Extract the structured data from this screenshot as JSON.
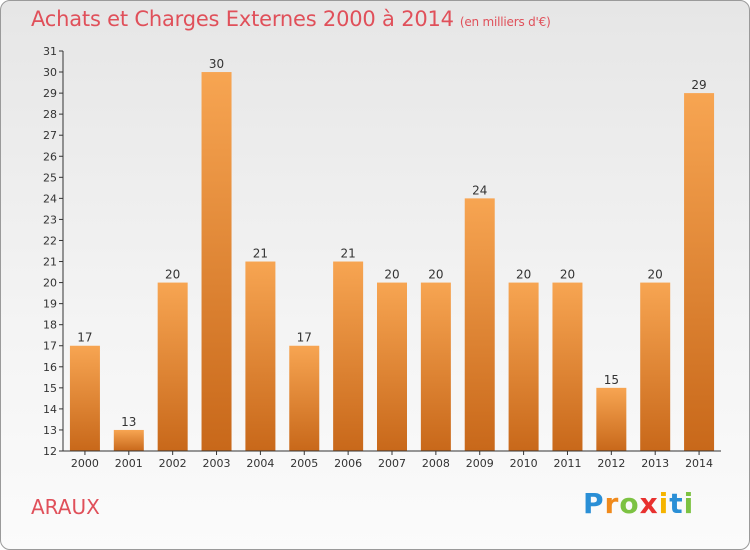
{
  "header": {
    "title": "Achats et Charges Externes 2000 à 2014",
    "subtitle": "(en milliers d'€)"
  },
  "footer": {
    "place": "ARAUX",
    "brand": [
      "P",
      "r",
      "o",
      "x",
      "i",
      "t",
      "i"
    ]
  },
  "colors": {
    "title": "#e0505a",
    "bar_top": "#f7a552",
    "bar_bottom": "#c8681a",
    "axis": "#333333"
  },
  "chart_data": {
    "type": "bar",
    "title": "Achats et Charges Externes 2000 à 2014",
    "subtitle": "(en milliers d'€)",
    "categories": [
      "2000",
      "2001",
      "2002",
      "2003",
      "2004",
      "2005",
      "2006",
      "2007",
      "2008",
      "2009",
      "2010",
      "2011",
      "2012",
      "2013",
      "2014"
    ],
    "values": [
      17,
      13,
      20,
      30,
      21,
      17,
      21,
      20,
      20,
      24,
      20,
      20,
      15,
      20,
      29
    ],
    "ylim": [
      12,
      31
    ],
    "yticks": [
      12,
      13,
      14,
      15,
      16,
      17,
      18,
      19,
      20,
      21,
      22,
      23,
      24,
      25,
      26,
      27,
      28,
      29,
      30,
      31
    ],
    "xlabel": "",
    "ylabel": "",
    "grid": false,
    "data_labels": true
  }
}
